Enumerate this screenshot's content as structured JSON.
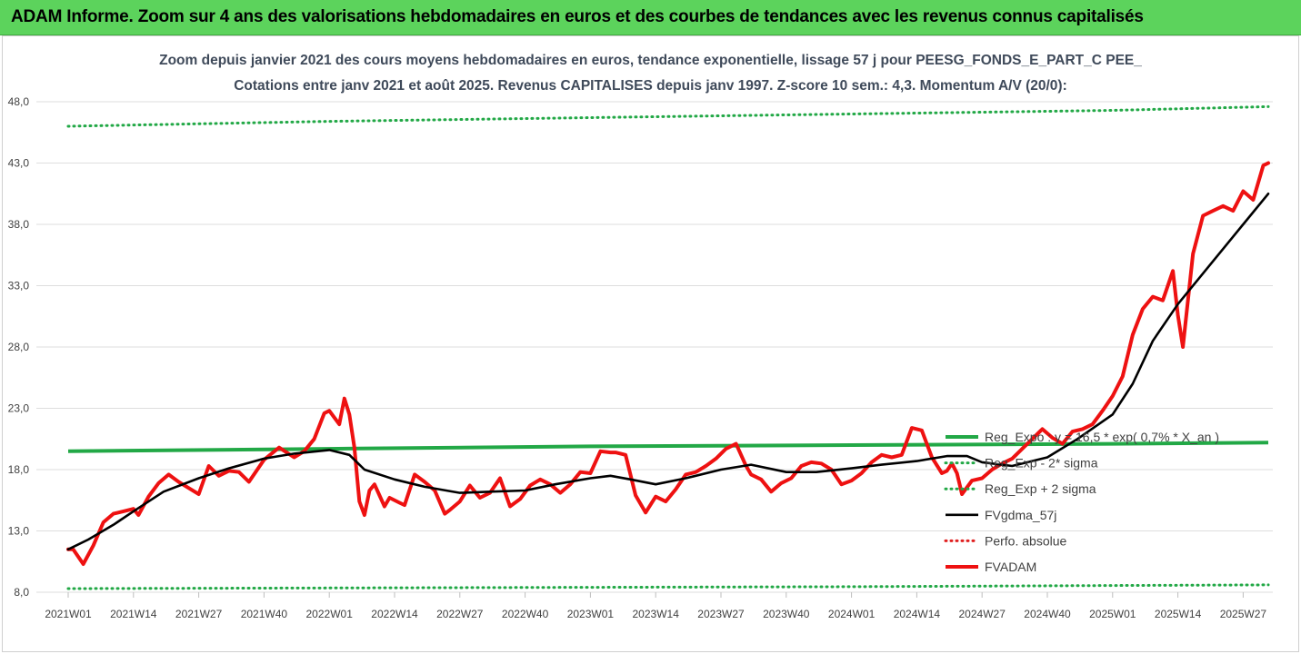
{
  "header": {
    "title": "ADAM Informe. Zoom sur 4 ans des valorisations hebdomadaires en euros et des courbes de tendances avec les revenus connus capitalisés"
  },
  "chart_data": {
    "type": "line",
    "title": "Zoom depuis janvier 2021 des cours moyens hebdomadaires en euros, tendance exponentielle, lissage 57 j pour PEESG_FONDS_E_PART_C PEE_",
    "subtitle": "Cotations entre janv 2021 et août 2025. Revenus CAPITALISES depuis janv 1997. Z-score 10 sem.: 4,3. Momentum A/V (20/0):",
    "xlabel": "",
    "ylabel": "",
    "ylim": [
      8.0,
      48.0
    ],
    "y_ticks": [
      "8,0",
      "13,0",
      "18,0",
      "23,0",
      "28,0",
      "33,0",
      "38,0",
      "43,0",
      "48,0"
    ],
    "x_tick_labels": [
      "2021W01",
      "2021W14",
      "2021W27",
      "2021W40",
      "2022W01",
      "2022W14",
      "2022W27",
      "2022W40",
      "2023W01",
      "2023W14",
      "2023W27",
      "2023W40",
      "2024W01",
      "2024W14",
      "2024W27",
      "2024W40",
      "2025W01",
      "2025W14",
      "2025W27"
    ],
    "grid": true,
    "legend_position": "right",
    "series": [
      {
        "name": "Reg_Expo : y = 16,5 * exp( 0,7% * X_an )",
        "color": "#22a846",
        "style": "solid",
        "x": [
          "2021W01",
          "2022W01",
          "2023W01",
          "2024W01",
          "2025W01",
          "2025W32"
        ],
        "values": [
          19.5,
          19.7,
          19.9,
          20.0,
          20.1,
          20.2
        ]
      },
      {
        "name": "Reg_Exp - 2* sigma",
        "color": "#22a846",
        "style": "dotted",
        "x": [
          "2021W01",
          "2022W01",
          "2023W01",
          "2024W01",
          "2025W01",
          "2025W32"
        ],
        "values": [
          8.3,
          8.35,
          8.4,
          8.45,
          8.55,
          8.6
        ]
      },
      {
        "name": "Reg_Exp + 2 sigma",
        "color": "#22a846",
        "style": "dotted",
        "x": [
          "2021W01",
          "2022W01",
          "2023W01",
          "2024W01",
          "2025W01",
          "2025W32"
        ],
        "values": [
          46.0,
          46.4,
          46.7,
          47.0,
          47.3,
          47.6
        ]
      },
      {
        "name": "FVgdma_57j",
        "color": "#000000",
        "style": "solid",
        "x": [
          "2021W01",
          "2021W05",
          "2021W10",
          "2021W14",
          "2021W20",
          "2021W27",
          "2021W33",
          "2021W40",
          "2021W46",
          "2022W01",
          "2022W05",
          "2022W08",
          "2022W14",
          "2022W20",
          "2022W27",
          "2022W33",
          "2022W40",
          "2022W46",
          "2023W01",
          "2023W05",
          "2023W09",
          "2023W14",
          "2023W20",
          "2023W27",
          "2023W33",
          "2023W40",
          "2023W46",
          "2024W01",
          "2024W07",
          "2024W14",
          "2024W20",
          "2024W24",
          "2024W27",
          "2024W33",
          "2024W40",
          "2024W46",
          "2025W01",
          "2025W05",
          "2025W09",
          "2025W14",
          "2025W20",
          "2025W27",
          "2025W32"
        ],
        "values": [
          11.5,
          12.3,
          13.5,
          14.6,
          16.2,
          17.3,
          18.1,
          18.9,
          19.3,
          19.6,
          19.2,
          18.0,
          17.2,
          16.6,
          16.1,
          16.2,
          16.3,
          16.8,
          17.3,
          17.5,
          17.2,
          16.8,
          17.3,
          18.0,
          18.4,
          17.8,
          17.8,
          18.1,
          18.4,
          18.7,
          19.1,
          19.1,
          18.6,
          18.3,
          19.0,
          20.5,
          22.5,
          25.0,
          28.5,
          31.5,
          34.5,
          38.0,
          40.5
        ]
      },
      {
        "name": "Perfo. absolue",
        "color": "#e02020",
        "style": "dotted",
        "x": [],
        "values": []
      },
      {
        "name": "FVADAM",
        "color": "#ee1111",
        "style": "solid",
        "x": [
          "2021W01",
          "2021W02",
          "2021W04",
          "2021W06",
          "2021W08",
          "2021W10",
          "2021W12",
          "2021W14",
          "2021W15",
          "2021W17",
          "2021W19",
          "2021W21",
          "2021W23",
          "2021W25",
          "2021W27",
          "2021W29",
          "2021W31",
          "2021W33",
          "2021W35",
          "2021W37",
          "2021W40",
          "2021W43",
          "2021W46",
          "2021W48",
          "2021W50",
          "2021W52",
          "2022W01",
          "2022W03",
          "2022W04",
          "2022W05",
          "2022W06",
          "2022W07",
          "2022W08",
          "2022W09",
          "2022W10",
          "2022W12",
          "2022W13",
          "2022W15",
          "2022W16",
          "2022W18",
          "2022W20",
          "2022W22",
          "2022W24",
          "2022W25",
          "2022W27",
          "2022W29",
          "2022W31",
          "2022W33",
          "2022W35",
          "2022W37",
          "2022W39",
          "2022W41",
          "2022W43",
          "2022W45",
          "2022W47",
          "2022W49",
          "2022W51",
          "2023W01",
          "2023W03",
          "2023W05",
          "2023W06",
          "2023W08",
          "2023W10",
          "2023W12",
          "2023W14",
          "2023W16",
          "2023W18",
          "2023W20",
          "2023W22",
          "2023W24",
          "2023W26",
          "2023W28",
          "2023W30",
          "2023W32",
          "2023W33",
          "2023W35",
          "2023W37",
          "2023W39",
          "2023W41",
          "2023W43",
          "2023W45",
          "2023W47",
          "2023W49",
          "2023W51",
          "2024W01",
          "2024W03",
          "2024W05",
          "2024W07",
          "2024W09",
          "2024W11",
          "2024W13",
          "2024W15",
          "2024W17",
          "2024W19",
          "2024W20",
          "2024W21",
          "2024W22",
          "2024W23",
          "2024W25",
          "2024W27",
          "2024W29",
          "2024W31",
          "2024W33",
          "2024W35",
          "2024W37",
          "2024W39",
          "2024W41",
          "2024W43",
          "2024W45",
          "2024W47",
          "2024W49",
          "2024W51",
          "2025W01",
          "2025W03",
          "2025W05",
          "2025W07",
          "2025W09",
          "2025W11",
          "2025W13",
          "2025W14",
          "2025W15",
          "2025W17",
          "2025W19",
          "2025W21",
          "2025W23",
          "2025W25",
          "2025W27",
          "2025W29",
          "2025W31",
          "2025W32"
        ],
        "values": [
          11.5,
          11.5,
          10.3,
          11.8,
          13.7,
          14.4,
          14.6,
          14.8,
          14.3,
          15.8,
          16.9,
          17.6,
          17.0,
          16.5,
          16.0,
          18.3,
          17.5,
          17.9,
          17.8,
          17.0,
          18.8,
          19.8,
          19.0,
          19.5,
          20.5,
          22.6,
          22.8,
          21.7,
          23.8,
          22.5,
          19.8,
          15.4,
          14.3,
          16.3,
          16.8,
          15.0,
          15.7,
          15.3,
          15.1,
          17.6,
          17.0,
          16.3,
          14.4,
          14.7,
          15.4,
          16.7,
          15.7,
          16.1,
          17.3,
          15.0,
          15.6,
          16.7,
          17.2,
          16.8,
          16.1,
          16.8,
          17.8,
          17.7,
          19.5,
          19.4,
          19.4,
          19.2,
          15.9,
          14.5,
          15.8,
          15.4,
          16.4,
          17.6,
          17.8,
          18.3,
          18.9,
          19.7,
          20.1,
          18.3,
          17.6,
          17.2,
          16.2,
          16.9,
          17.3,
          18.3,
          18.6,
          18.5,
          18.0,
          16.8,
          17.1,
          17.7,
          18.6,
          19.2,
          19.0,
          19.2,
          21.4,
          21.2,
          19.0,
          17.7,
          17.9,
          18.5,
          17.7,
          16.0,
          17.1,
          17.3,
          18.0,
          18.5,
          18.9,
          19.7,
          20.5,
          21.3,
          20.6,
          20.1,
          21.1,
          21.3,
          21.7,
          22.8,
          24.0,
          25.6,
          29.0,
          31.1,
          32.1,
          31.8,
          34.2,
          30.6,
          28.0,
          35.6,
          38.7,
          39.1,
          39.5,
          39.1,
          40.7,
          40.0,
          42.8,
          43.0
        ]
      }
    ]
  }
}
